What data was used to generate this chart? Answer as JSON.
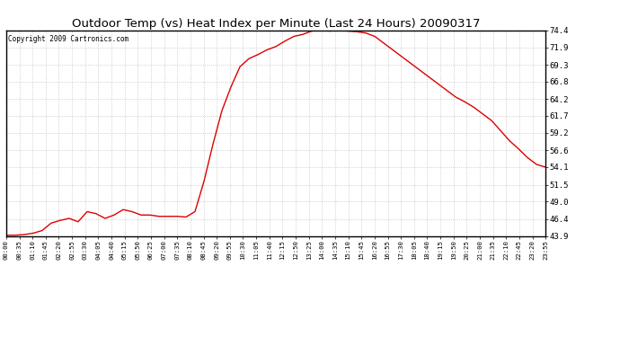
{
  "title": "Outdoor Temp (vs) Heat Index per Minute (Last 24 Hours) 20090317",
  "copyright": "Copyright 2009 Cartronics.com",
  "line_color": "#dd0000",
  "background_color": "#ffffff",
  "plot_background": "#ffffff",
  "grid_color": "#bbbbbb",
  "ylim": [
    43.9,
    74.4
  ],
  "yticks": [
    43.9,
    46.4,
    49.0,
    51.5,
    54.1,
    56.6,
    59.2,
    61.7,
    64.2,
    66.8,
    69.3,
    71.9,
    74.4
  ],
  "xtick_labels": [
    "00:00",
    "00:35",
    "01:10",
    "01:45",
    "02:20",
    "02:55",
    "03:30",
    "04:05",
    "04:40",
    "05:15",
    "05:50",
    "06:25",
    "07:00",
    "07:35",
    "08:10",
    "08:45",
    "09:20",
    "09:55",
    "10:30",
    "11:05",
    "11:40",
    "12:15",
    "12:50",
    "13:25",
    "14:00",
    "14:35",
    "15:10",
    "15:45",
    "16:20",
    "16:55",
    "17:30",
    "18:05",
    "18:40",
    "19:15",
    "19:50",
    "20:25",
    "21:00",
    "21:35",
    "22:10",
    "22:45",
    "23:20",
    "23:55"
  ],
  "curve_points": [
    [
      0,
      44.0
    ],
    [
      1,
      44.0
    ],
    [
      2,
      44.1
    ],
    [
      3,
      44.3
    ],
    [
      4,
      44.7
    ],
    [
      5,
      45.8
    ],
    [
      6,
      46.2
    ],
    [
      7,
      46.5
    ],
    [
      8,
      46.0
    ],
    [
      9,
      47.5
    ],
    [
      10,
      47.2
    ],
    [
      11,
      46.5
    ],
    [
      12,
      47.0
    ],
    [
      13,
      47.8
    ],
    [
      14,
      47.5
    ],
    [
      15,
      47.0
    ],
    [
      16,
      47.0
    ],
    [
      17,
      46.8
    ],
    [
      18,
      46.8
    ],
    [
      19,
      46.8
    ],
    [
      20,
      46.7
    ],
    [
      21,
      47.5
    ],
    [
      22,
      52.0
    ],
    [
      23,
      57.5
    ],
    [
      24,
      62.5
    ],
    [
      25,
      66.0
    ],
    [
      26,
      69.0
    ],
    [
      27,
      70.2
    ],
    [
      28,
      70.8
    ],
    [
      29,
      71.5
    ],
    [
      30,
      72.0
    ],
    [
      31,
      72.8
    ],
    [
      32,
      73.5
    ],
    [
      33,
      73.8
    ],
    [
      34,
      74.3
    ],
    [
      35,
      74.4
    ],
    [
      36,
      74.3
    ],
    [
      37,
      74.4
    ],
    [
      38,
      74.3
    ],
    [
      39,
      74.2
    ],
    [
      40,
      74.0
    ],
    [
      41,
      73.5
    ],
    [
      42,
      72.5
    ],
    [
      43,
      71.5
    ],
    [
      44,
      70.5
    ],
    [
      45,
      69.5
    ],
    [
      46,
      68.5
    ],
    [
      47,
      67.5
    ],
    [
      48,
      66.5
    ],
    [
      49,
      65.5
    ],
    [
      50,
      64.5
    ],
    [
      51,
      63.8
    ],
    [
      52,
      63.0
    ],
    [
      53,
      62.0
    ],
    [
      54,
      61.0
    ],
    [
      55,
      59.5
    ],
    [
      56,
      58.0
    ],
    [
      57,
      56.8
    ],
    [
      58,
      55.5
    ],
    [
      59,
      54.5
    ],
    [
      60,
      54.1
    ]
  ]
}
